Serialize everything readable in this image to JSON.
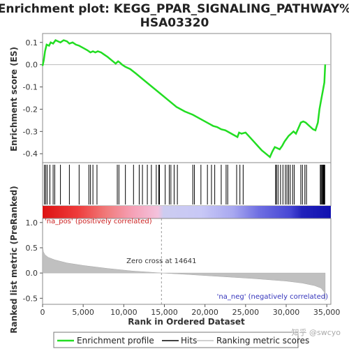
{
  "chart_data": [
    {
      "type": "line",
      "title_line1": "Enrichment plot: KEGG_PPAR_SIGNALING_PATHWAY%",
      "title_line2": "HSA03320",
      "ylabel": "Enrichment score (ES)",
      "xlim": [
        0,
        35500
      ],
      "ylim": [
        -0.44,
        0.14
      ],
      "yticks": [
        0.1,
        0.0,
        -0.1,
        -0.2,
        -0.3,
        -0.4
      ],
      "ytick_labels": [
        "0.1",
        "0.0",
        "-0.1",
        "-0.2",
        "-0.3",
        "-0.4"
      ],
      "series": [
        {
          "name": "Enrichment profile",
          "color": "#22dd22",
          "x": [
            0,
            150,
            300,
            500,
            800,
            1000,
            1300,
            1600,
            1900,
            2200,
            2600,
            3000,
            3300,
            3700,
            4100,
            4500,
            5000,
            5500,
            5900,
            6200,
            6500,
            6800,
            7200,
            7600,
            8000,
            8500,
            9000,
            9300,
            9500,
            9800,
            10200,
            10800,
            11500,
            12500,
            13500,
            14500,
            15500,
            16500,
            17500,
            18500,
            19500,
            20500,
            21000,
            21500,
            22000,
            22500,
            23000,
            23500,
            24000,
            24200,
            24500,
            25000,
            25500,
            26000,
            26500,
            27000,
            27500,
            28000,
            28300,
            28600,
            28900,
            29200,
            29500,
            29800,
            30000,
            30300,
            30600,
            30900,
            31200,
            31500,
            31800,
            32100,
            32400,
            32700,
            33000,
            33300,
            33600,
            33900,
            34100,
            34300,
            34500,
            34700,
            34800
          ],
          "y": [
            -0.005,
            0.02,
            0.06,
            0.09,
            0.085,
            0.1,
            0.095,
            0.11,
            0.105,
            0.1,
            0.11,
            0.105,
            0.095,
            0.1,
            0.09,
            0.085,
            0.075,
            0.065,
            0.055,
            0.06,
            0.055,
            0.06,
            0.055,
            0.045,
            0.035,
            0.02,
            0.005,
            0.015,
            0.01,
            0.0,
            -0.01,
            -0.02,
            -0.04,
            -0.07,
            -0.1,
            -0.13,
            -0.16,
            -0.19,
            -0.21,
            -0.225,
            -0.245,
            -0.265,
            -0.275,
            -0.28,
            -0.29,
            -0.295,
            -0.305,
            -0.315,
            -0.325,
            -0.305,
            -0.31,
            -0.305,
            -0.325,
            -0.345,
            -0.365,
            -0.385,
            -0.4,
            -0.415,
            -0.39,
            -0.37,
            -0.375,
            -0.38,
            -0.365,
            -0.345,
            -0.335,
            -0.32,
            -0.31,
            -0.3,
            -0.31,
            -0.285,
            -0.26,
            -0.255,
            -0.26,
            -0.27,
            -0.28,
            -0.29,
            -0.295,
            -0.26,
            -0.2,
            -0.16,
            -0.12,
            -0.08,
            0.0
          ]
        }
      ],
      "zero_line_color": "#bbbbbb"
    },
    {
      "type": "hits",
      "hit_positions": [
        220,
        380,
        560,
        900,
        1300,
        1500,
        2200,
        3300,
        4500,
        5700,
        5900,
        6200,
        6700,
        9200,
        9400,
        10200,
        11200,
        11900,
        12300,
        12900,
        13400,
        14000,
        14300,
        14400,
        15100,
        15600,
        15800,
        16200,
        16600,
        18500,
        18700,
        19500,
        20300,
        20800,
        21200,
        22000,
        22600,
        22800,
        23900,
        24300,
        24700,
        28700,
        28800,
        29000,
        29300,
        29600,
        29900,
        30100,
        30300,
        30500,
        30800,
        31000,
        31800,
        32000,
        32300,
        32500,
        34200,
        34300,
        34400,
        34500,
        34550,
        34600,
        34650,
        34700,
        34750
      ]
    },
    {
      "type": "area",
      "ylabel": "Ranked list metric (PreRanked)",
      "xlabel": "Rank in Ordered Dataset",
      "xlim": [
        0,
        35500
      ],
      "ylim": [
        -0.62,
        1.08
      ],
      "xticks": [
        0,
        5000,
        10000,
        15000,
        20000,
        25000,
        30000,
        35000
      ],
      "xtick_labels": [
        "0",
        "5,000",
        "10,000",
        "15,000",
        "20,000",
        "25,000",
        "30,000",
        "35,000"
      ],
      "yticks": [
        1.0,
        0.5,
        0.0,
        -0.5
      ],
      "ytick_labels": [
        "1.0",
        "0.5",
        "0.0",
        "-0.5"
      ],
      "x": [
        0,
        100,
        300,
        700,
        1500,
        3000,
        5000,
        8000,
        11000,
        14641,
        18000,
        22000,
        26000,
        30000,
        32000,
        33500,
        34300,
        34700,
        34800
      ],
      "y": [
        0.55,
        0.42,
        0.36,
        0.31,
        0.26,
        0.2,
        0.15,
        0.09,
        0.04,
        0.0,
        -0.03,
        -0.07,
        -0.11,
        -0.16,
        -0.2,
        -0.25,
        -0.3,
        -0.38,
        -0.55
      ],
      "fill_color": "#c0c0c0",
      "zero_cross_label": "Zero cross at 14641",
      "zero_cross_x": 14641,
      "pos_label": "'na_pos' (positively correlated)",
      "neg_label": "'na_neg' (negatively correlated)",
      "pos_label_color": "#cc2222",
      "neg_label_color": "#3333bb"
    }
  ],
  "legend": {
    "items": [
      {
        "label": "Enrichment profile",
        "color": "#22dd22"
      },
      {
        "label": "Hits",
        "color": "#000000"
      },
      {
        "label": "Ranking metric scores",
        "color": "#c0c0c0"
      }
    ]
  },
  "watermark": "知乎 @swcyo"
}
